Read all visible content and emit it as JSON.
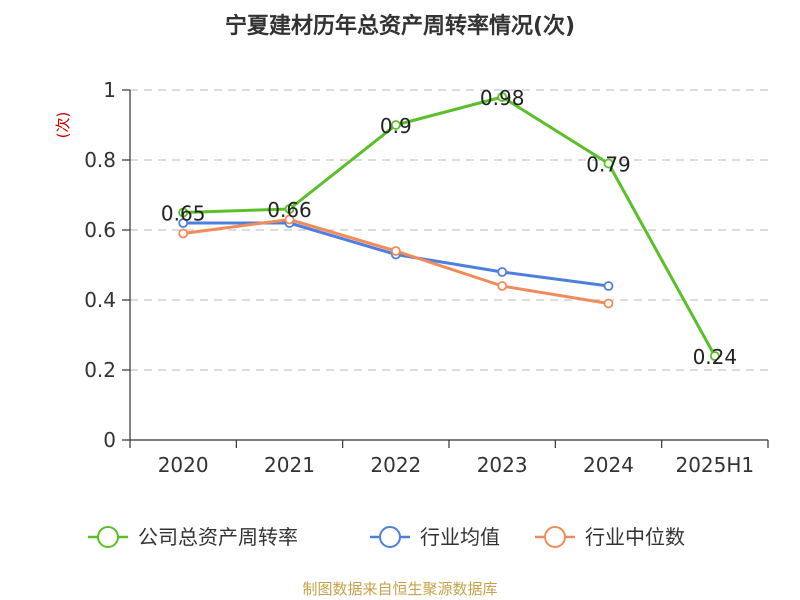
{
  "chart_data": {
    "type": "line",
    "title": "宁夏建材历年总资产周转率情况(次)",
    "unit_label": "(次)",
    "categories": [
      "2020",
      "2021",
      "2022",
      "2023",
      "2024",
      "2025H1"
    ],
    "ylim": [
      0,
      1
    ],
    "yticks": [
      "0",
      "0.2",
      "0.4",
      "0.6",
      "0.8",
      "1"
    ],
    "grid": "horizontal-dashed",
    "legend_position": "bottom",
    "series": [
      {
        "name": "公司总资产周转率",
        "color": "#5cbf2a",
        "values": [
          0.65,
          0.66,
          0.9,
          0.98,
          0.79,
          0.24
        ],
        "labels": [
          "0.65",
          "0.66",
          "0.9",
          "0.98",
          "0.79",
          "0.24"
        ]
      },
      {
        "name": "行业均值",
        "color": "#4f7fdc",
        "values": [
          0.62,
          0.62,
          0.53,
          0.48,
          0.44,
          null
        ]
      },
      {
        "name": "行业中位数",
        "color": "#f28b5a",
        "values": [
          0.59,
          0.63,
          0.54,
          0.44,
          0.39,
          null
        ]
      }
    ],
    "source": "制图数据来自恒生聚源数据库"
  }
}
